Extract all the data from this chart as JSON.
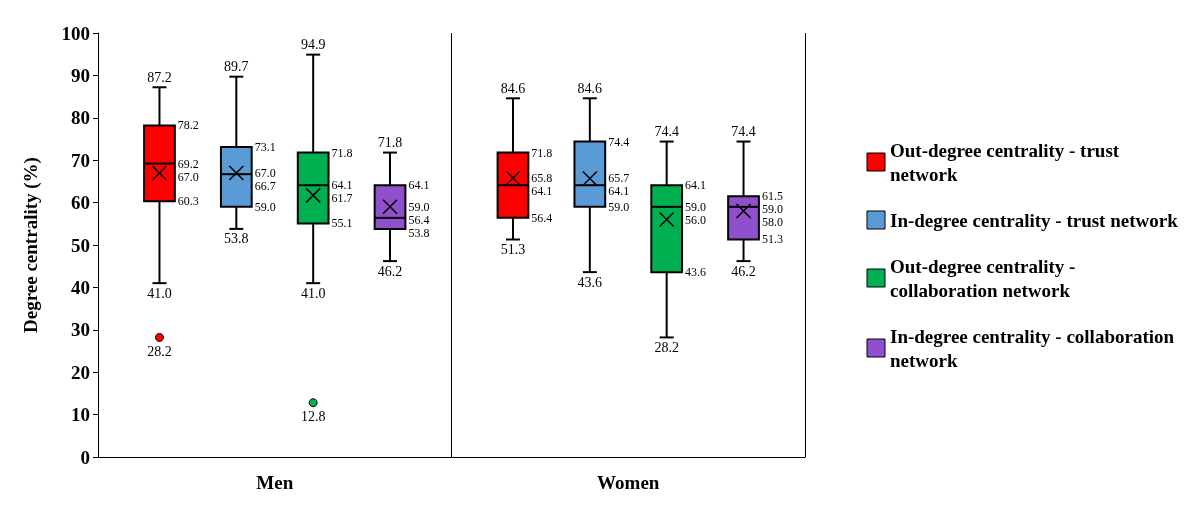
{
  "chart_data": {
    "type": "box",
    "ylabel": "Degree centrality (%)",
    "categories": [
      "Men",
      "Women"
    ],
    "ylim": [
      0,
      100
    ],
    "yticks": [
      0,
      10,
      20,
      30,
      40,
      50,
      60,
      70,
      80,
      90,
      100
    ],
    "grid": "x",
    "legend": "right",
    "data_labels": true,
    "series": [
      {
        "name": "Out-degree centrality - trust network",
        "color": "#ff0000",
        "boxes": [
          {
            "low": 41.0,
            "q1": 60.3,
            "median": 69.2,
            "q3": 78.2,
            "high": 87.2,
            "mean": 67.0,
            "outliers": [
              28.2
            ]
          },
          {
            "low": 51.3,
            "q1": 56.4,
            "median": 64.1,
            "q3": 71.8,
            "high": 84.6,
            "mean": 65.8
          }
        ],
        "value_labels": [
          {
            "low": "41.0",
            "q1": "60.3",
            "median": "69.2",
            "q3": "78.2",
            "high": "87.2",
            "mean": "67.0",
            "outliers": [
              "28.2"
            ]
          },
          {
            "low": "51.3",
            "q1": "56.4",
            "median": "64.1",
            "q3": "71.8",
            "high": "84.6",
            "mean": "65.8"
          }
        ]
      },
      {
        "name": "In-degree centrality - trust network",
        "color": "#5b9bd5",
        "boxes": [
          {
            "low": 53.8,
            "q1": 59.0,
            "median": 66.7,
            "q3": 73.1,
            "high": 89.7,
            "mean": 67.0
          },
          {
            "low": 43.6,
            "q1": 59.0,
            "median": 64.1,
            "q3": 74.4,
            "high": 84.6,
            "mean": 65.7
          }
        ],
        "value_labels": [
          {
            "low": "53.8",
            "q1": "59.0",
            "median": "66.7",
            "q3": "73.1",
            "high": "89.7",
            "mean": "67.0"
          },
          {
            "low": "43.6",
            "q1": "59.0",
            "median": "64.1",
            "q3": "74.4",
            "high": "84.6",
            "mean": "65.7"
          }
        ]
      },
      {
        "name": "Out-degree centrality - collaboration network",
        "color": "#00b050",
        "boxes": [
          {
            "low": 41.0,
            "q1": 55.1,
            "median": 64.1,
            "q3": 71.8,
            "high": 94.9,
            "mean": 61.7,
            "outliers": [
              12.8
            ]
          },
          {
            "low": 28.2,
            "q1": 43.6,
            "median": 59.0,
            "q3": 64.1,
            "high": 74.4,
            "mean": 56.0
          }
        ],
        "value_labels": [
          {
            "low": "41.0",
            "q1": "55.1",
            "median": "64.1",
            "q3": "71.8",
            "high": "94.9",
            "mean": "61.7",
            "outliers": [
              "12.8"
            ]
          },
          {
            "low": "28.2",
            "q1": "43.6",
            "median": "59.0",
            "q3": "64.1",
            "high": "74.4",
            "mean": "56.0"
          }
        ]
      },
      {
        "name": "In-degree centrality - collaboration network",
        "color": "#9050cc",
        "boxes": [
          {
            "low": 46.2,
            "q1": 53.8,
            "median": 56.4,
            "q3": 64.1,
            "high": 71.8,
            "mean": 59.0
          },
          {
            "low": 46.2,
            "q1": 51.3,
            "median": 59.0,
            "q3": 61.5,
            "high": 74.4,
            "mean": 58.0
          }
        ],
        "value_labels": [
          {
            "low": "46.2",
            "q1": "53.8",
            "median": "56.4",
            "q3": "64.1",
            "high": "71.8",
            "mean": "59.0"
          },
          {
            "low": "46.2",
            "q1": "51.3",
            "median": "59.0",
            "q3": "61.5",
            "high": "74.4",
            "mean": "58.0"
          }
        ]
      }
    ]
  }
}
